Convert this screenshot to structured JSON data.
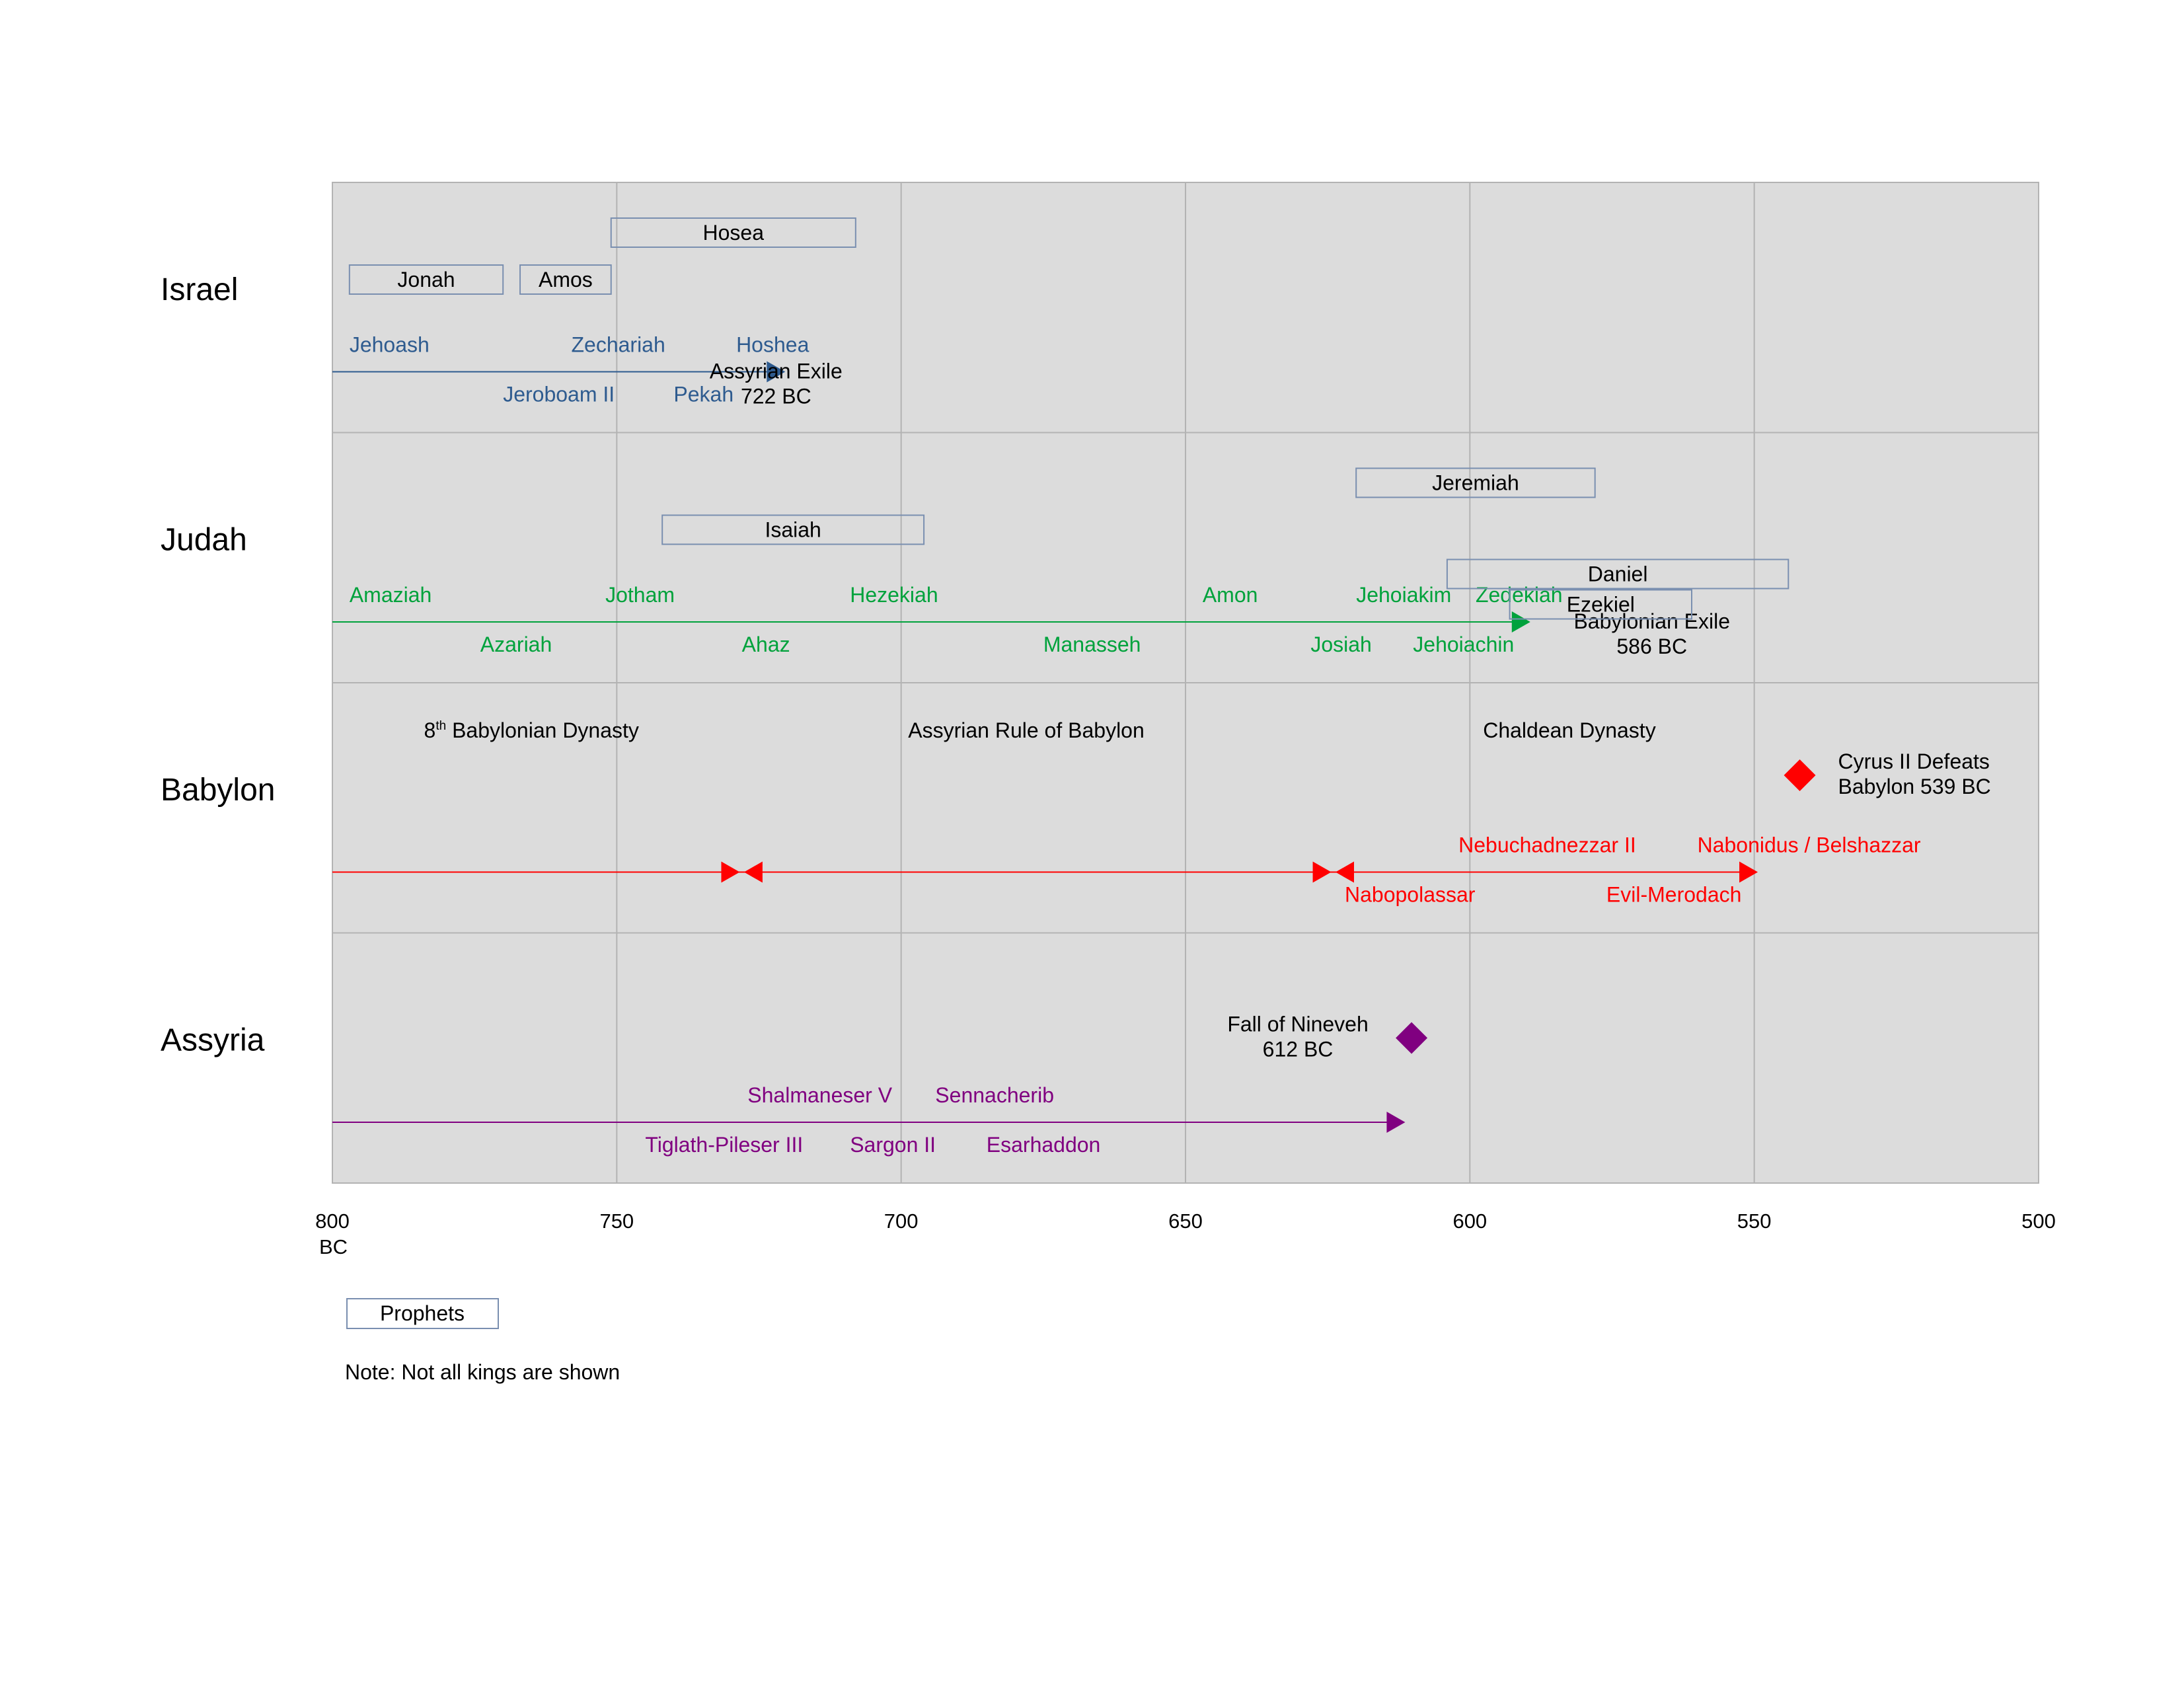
{
  "chart_data": {
    "type": "timeline",
    "x_range": [
      800,
      500
    ],
    "x_ticks": [
      {
        "value": 800,
        "label": "800",
        "sublabel": "BC"
      },
      {
        "value": 750,
        "label": "750"
      },
      {
        "value": 700,
        "label": "700"
      },
      {
        "value": 650,
        "label": "650"
      },
      {
        "value": 600,
        "label": "600"
      },
      {
        "value": 550,
        "label": "550"
      },
      {
        "value": 500,
        "label": "500"
      }
    ],
    "gridlines": [
      750,
      700,
      650,
      600,
      550
    ],
    "rows": [
      {
        "name": "Israel",
        "color": "#2e5b8f",
        "line": {
          "start": 800,
          "end": 722,
          "arrow": "right"
        },
        "end_label": [
          "Assyrian Exile",
          "722 BC"
        ],
        "end_label_year": 722,
        "kings_upper": [
          {
            "name": "Jehoash",
            "year": 797
          },
          {
            "name": "Zechariah",
            "year": 758
          },
          {
            "name": "Hoshea",
            "year": 729
          }
        ],
        "kings_lower": [
          {
            "name": "Jeroboam II",
            "year": 770
          },
          {
            "name": "Pekah",
            "year": 740
          }
        ],
        "prophets": [
          {
            "name": "Hosea",
            "start": 751,
            "end": 708,
            "level": 0
          },
          {
            "name": "Jonah",
            "start": 797,
            "end": 770,
            "level": 1
          },
          {
            "name": "Amos",
            "start": 767,
            "end": 751,
            "level": 1
          }
        ]
      },
      {
        "name": "Judah",
        "color": "#00a23c",
        "line": {
          "start": 800,
          "end": 591,
          "arrow": "right"
        },
        "end_label": [
          "Babylonian Exile",
          "586 BC"
        ],
        "end_label_year": 568,
        "kings_upper": [
          {
            "name": "Amaziah",
            "year": 797
          },
          {
            "name": "Jotham",
            "year": 752
          },
          {
            "name": "Hezekiah",
            "year": 709
          },
          {
            "name": "Amon",
            "year": 647
          },
          {
            "name": "Jehoiakim",
            "year": 620
          },
          {
            "name": "Zedekiah",
            "year": 599
          }
        ],
        "kings_lower": [
          {
            "name": "Azariah",
            "year": 774
          },
          {
            "name": "Ahaz",
            "year": 728
          },
          {
            "name": "Manasseh",
            "year": 675
          },
          {
            "name": "Josiah",
            "year": 628
          },
          {
            "name": "Jehoiachin",
            "year": 610
          }
        ],
        "prophets": [
          {
            "name": "Jeremiah",
            "start": 620,
            "end": 578,
            "level": 0
          },
          {
            "name": "Isaiah",
            "start": 742,
            "end": 696,
            "level": 1
          },
          {
            "name": "Daniel",
            "start": 604,
            "end": 544,
            "level": 2
          },
          {
            "name": "Ezekiel",
            "start": 593,
            "end": 561,
            "level": 3
          }
        ]
      },
      {
        "name": "Babylon",
        "color": "#ff0000",
        "line": {
          "start": 800,
          "end": 551
        },
        "dynasties": [
          {
            "pre": "8",
            "sup": "th",
            "name": " Babylonian Dynasty",
            "start": 800,
            "end": 730
          },
          {
            "name": "Assyrian Rule of Babylon",
            "start": 730,
            "end": 626
          },
          {
            "name": "Chaldean Dynasty",
            "start": 626,
            "end": 539
          }
        ],
        "markers": [
          {
            "year": 730,
            "shape": "arrow-right"
          },
          {
            "year": 726,
            "shape": "arrow-left"
          },
          {
            "year": 626,
            "shape": "arrow-right"
          },
          {
            "year": 622,
            "shape": "arrow-left"
          },
          {
            "year": 551,
            "shape": "arrow-right"
          }
        ],
        "event": {
          "label": [
            "Cyrus II Defeats",
            "Babylon 539 BC"
          ],
          "year": 542,
          "shape": "diamond"
        },
        "kings_upper": [
          {
            "name": "Nebuchadnezzar II",
            "year": 602
          },
          {
            "name": "Nabonidus / Belshazzar",
            "year": 560
          }
        ],
        "kings_lower": [
          {
            "name": "Nabopolassar",
            "year": 622
          },
          {
            "name": "Evil-Merodach",
            "year": 576
          }
        ]
      },
      {
        "name": "Assyria",
        "color": "#800080",
        "line": {
          "start": 800,
          "end": 613,
          "arrow": "right"
        },
        "event": {
          "label": [
            "Fall of Nineveh",
            "612 BC"
          ],
          "year": 612,
          "shape": "diamond"
        },
        "kings_upper": [
          {
            "name": "Shalmaneser V",
            "year": 727
          },
          {
            "name": "Sennacherib",
            "year": 694
          }
        ],
        "kings_lower": [
          {
            "name": "Tiglath-Pileser III",
            "year": 745
          },
          {
            "name": "Sargon II",
            "year": 709
          },
          {
            "name": "Esarhaddon",
            "year": 685
          }
        ]
      }
    ]
  },
  "legend": {
    "prophets_label": "Prophets"
  },
  "note": "Note: Not all kings are shown",
  "colors": {
    "panel_background": "#dcdcdc",
    "gridline": "#b3b3b3",
    "prophet_box_border": "#7a8fb0",
    "text": "#000000"
  }
}
